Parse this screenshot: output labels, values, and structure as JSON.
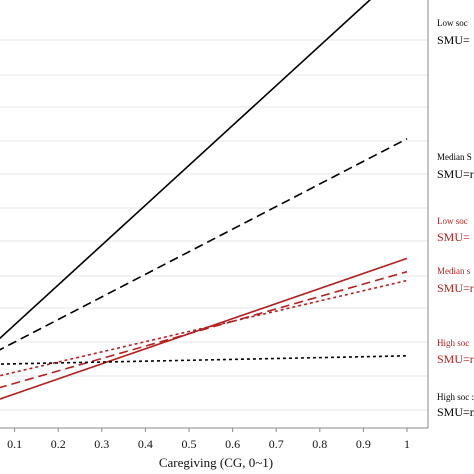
{
  "chart_data": {
    "type": "line",
    "xlabel": "Caregiving (CG, 0~1)",
    "ylabel": "",
    "title": "",
    "x_ticks": [
      "0.1",
      "0.2",
      "0.3",
      "0.4",
      "0.5",
      "0.6",
      "0.7",
      "0.8",
      "0.9",
      "1"
    ],
    "xlim": [
      0,
      1
    ],
    "grid": true,
    "legend_position": "right",
    "series": [
      {
        "key": "low_soc_black",
        "legend_line1": "Low soc",
        "legend_line2": "SMU=",
        "color": "#000000",
        "style": "solid",
        "x": [
          0,
          1
        ],
        "y": [
          1.0,
          10.0
        ]
      },
      {
        "key": "median_black",
        "legend_line1": "Median S",
        "legend_line2": "SMU=r",
        "color": "#000000",
        "style": "dashed",
        "x": [
          0,
          1
        ],
        "y": [
          1.0,
          6.1
        ]
      },
      {
        "key": "low_soc_red",
        "legend_line1": "Low soc",
        "legend_line2": "SMU=",
        "color": "#b22222",
        "style": "solid",
        "x": [
          0,
          1
        ],
        "y": [
          0.0,
          3.4
        ]
      },
      {
        "key": "median_red",
        "legend_line1": "Median s",
        "legend_line2": "SMU=r",
        "color": "#b22222",
        "style": "dashed",
        "x": [
          0,
          1
        ],
        "y": [
          0.3,
          3.1
        ]
      },
      {
        "key": "high_red",
        "legend_line1": "High soc",
        "legend_line2": "SMU=r",
        "color": "#b22222",
        "style": "dotted",
        "x": [
          0,
          1
        ],
        "y": [
          0.6,
          2.9
        ]
      },
      {
        "key": "high_black",
        "legend_line1": "High soc :",
        "legend_line2": "SMU=n",
        "color": "#000000",
        "style": "dotted",
        "x": [
          0,
          1
        ],
        "y": [
          1.0,
          1.2
        ]
      }
    ]
  }
}
